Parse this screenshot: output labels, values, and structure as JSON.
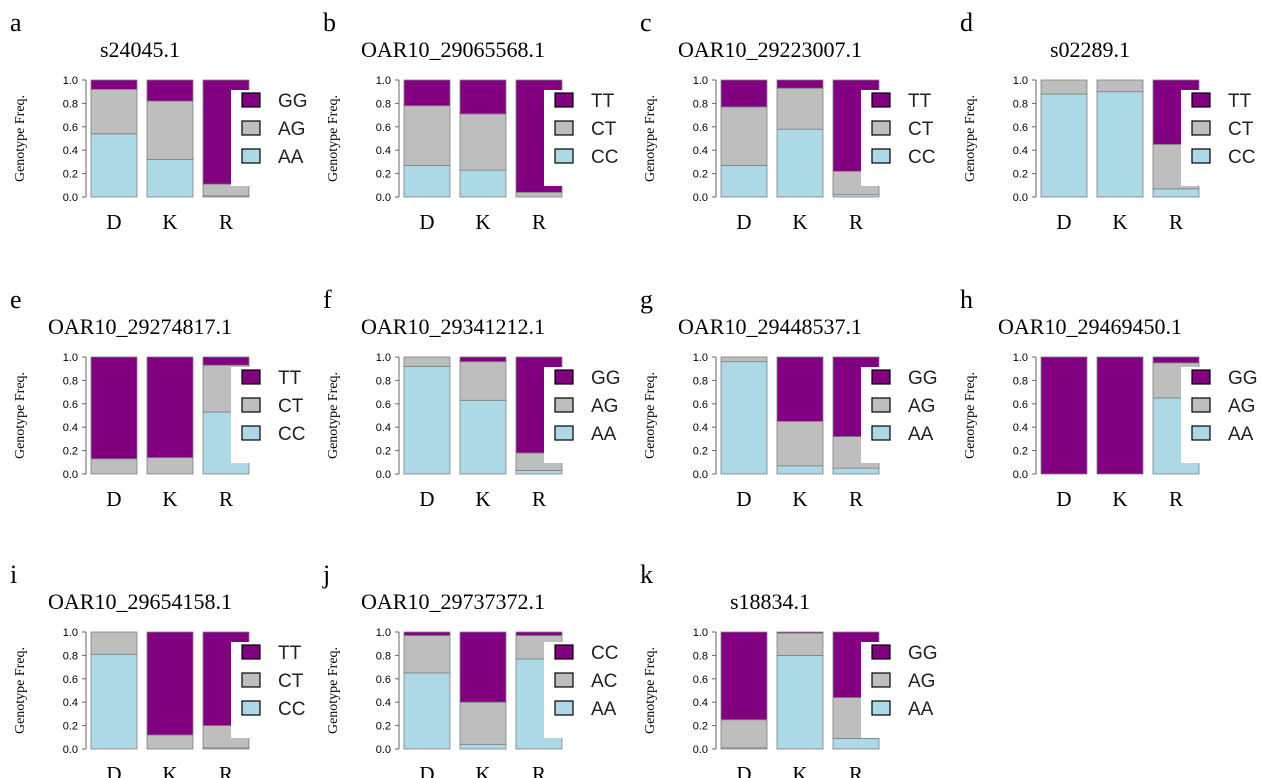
{
  "colors": {
    "hom_alt": "#800080",
    "het": "#bebebe",
    "hom_ref": "#add8e6"
  },
  "chart_data": [
    {
      "letter": "a",
      "title": "s24045.1",
      "type": "bar",
      "stacked": true,
      "ylabel": "Genotype Freq.",
      "ylim": [
        0,
        1
      ],
      "yticks": [
        "0.0",
        "0.2",
        "0.4",
        "0.6",
        "0.8",
        "1.0"
      ],
      "categories": [
        "D",
        "K",
        "R"
      ],
      "series": [
        {
          "name": "AA",
          "values": [
            0.54,
            0.32,
            0.01
          ]
        },
        {
          "name": "AG",
          "values": [
            0.38,
            0.5,
            0.1
          ]
        },
        {
          "name": "GG",
          "values": [
            0.08,
            0.18,
            0.89
          ]
        }
      ]
    },
    {
      "letter": "b",
      "title": "OAR10_29065568.1",
      "type": "bar",
      "stacked": true,
      "ylabel": "Genotype Freq.",
      "ylim": [
        0,
        1
      ],
      "yticks": [
        "0.0",
        "0.2",
        "0.4",
        "0.6",
        "0.8",
        "1.0"
      ],
      "categories": [
        "D",
        "K",
        "R"
      ],
      "series": [
        {
          "name": "CC",
          "values": [
            0.27,
            0.23,
            0.0
          ]
        },
        {
          "name": "CT",
          "values": [
            0.51,
            0.48,
            0.04
          ]
        },
        {
          "name": "TT",
          "values": [
            0.22,
            0.29,
            0.96
          ]
        }
      ]
    },
    {
      "letter": "c",
      "title": "OAR10_29223007.1",
      "type": "bar",
      "stacked": true,
      "ylabel": "Genotype Freq.",
      "ylim": [
        0,
        1
      ],
      "yticks": [
        "0.0",
        "0.2",
        "0.4",
        "0.6",
        "0.8",
        "1.0"
      ],
      "categories": [
        "D",
        "K",
        "R"
      ],
      "series": [
        {
          "name": "CC",
          "values": [
            0.27,
            0.58,
            0.02
          ]
        },
        {
          "name": "CT",
          "values": [
            0.5,
            0.35,
            0.2
          ]
        },
        {
          "name": "TT",
          "values": [
            0.23,
            0.07,
            0.78
          ]
        }
      ]
    },
    {
      "letter": "d",
      "title": "s02289.1",
      "type": "bar",
      "stacked": true,
      "ylabel": "Genotype Freq.",
      "ylim": [
        0,
        1
      ],
      "yticks": [
        "0.0",
        "0.2",
        "0.4",
        "0.6",
        "0.8",
        "1.0"
      ],
      "categories": [
        "D",
        "K",
        "R"
      ],
      "series": [
        {
          "name": "CC",
          "values": [
            0.88,
            0.9,
            0.07
          ]
        },
        {
          "name": "CT",
          "values": [
            0.12,
            0.1,
            0.38
          ]
        },
        {
          "name": "TT",
          "values": [
            0.0,
            0.0,
            0.55
          ]
        }
      ]
    },
    {
      "letter": "e",
      "title": "OAR10_29274817.1",
      "type": "bar",
      "stacked": true,
      "ylabel": "Genotype Freq.",
      "ylim": [
        0,
        1
      ],
      "yticks": [
        "0.0",
        "0.2",
        "0.4",
        "0.6",
        "0.8",
        "1.0"
      ],
      "categories": [
        "D",
        "K",
        "R"
      ],
      "series": [
        {
          "name": "CC",
          "values": [
            0.0,
            0.0,
            0.53
          ]
        },
        {
          "name": "CT",
          "values": [
            0.13,
            0.14,
            0.4
          ]
        },
        {
          "name": "TT",
          "values": [
            0.87,
            0.86,
            0.07
          ]
        }
      ]
    },
    {
      "letter": "f",
      "title": "OAR10_29341212.1",
      "type": "bar",
      "stacked": true,
      "ylabel": "Genotype Freq.",
      "ylim": [
        0,
        1
      ],
      "yticks": [
        "0.0",
        "0.2",
        "0.4",
        "0.6",
        "0.8",
        "1.0"
      ],
      "categories": [
        "D",
        "K",
        "R"
      ],
      "series": [
        {
          "name": "AA",
          "values": [
            0.92,
            0.63,
            0.03
          ]
        },
        {
          "name": "AG",
          "values": [
            0.08,
            0.33,
            0.15
          ]
        },
        {
          "name": "GG",
          "values": [
            0.0,
            0.04,
            0.82
          ]
        }
      ]
    },
    {
      "letter": "g",
      "title": "OAR10_29448537.1",
      "type": "bar",
      "stacked": true,
      "ylabel": "Genotype Freq.",
      "ylim": [
        0,
        1
      ],
      "yticks": [
        "0.0",
        "0.2",
        "0.4",
        "0.6",
        "0.8",
        "1.0"
      ],
      "categories": [
        "D",
        "K",
        "R"
      ],
      "series": [
        {
          "name": "AA",
          "values": [
            0.96,
            0.07,
            0.05
          ]
        },
        {
          "name": "AG",
          "values": [
            0.04,
            0.38,
            0.27
          ]
        },
        {
          "name": "GG",
          "values": [
            0.0,
            0.55,
            0.68
          ]
        }
      ]
    },
    {
      "letter": "h",
      "title": "OAR10_29469450.1",
      "type": "bar",
      "stacked": true,
      "ylabel": "Genotype Freq.",
      "ylim": [
        0,
        1
      ],
      "yticks": [
        "0.0",
        "0.2",
        "0.4",
        "0.6",
        "0.8",
        "1.0"
      ],
      "categories": [
        "D",
        "K",
        "R"
      ],
      "series": [
        {
          "name": "AA",
          "values": [
            0.0,
            0.0,
            0.65
          ]
        },
        {
          "name": "AG",
          "values": [
            0.0,
            0.0,
            0.3
          ]
        },
        {
          "name": "GG",
          "values": [
            1.0,
            1.0,
            0.05
          ]
        }
      ]
    },
    {
      "letter": "i",
      "title": "OAR10_29654158.1",
      "type": "bar",
      "stacked": true,
      "ylabel": "Genotype Freq.",
      "ylim": [
        0,
        1
      ],
      "yticks": [
        "0.0",
        "0.2",
        "0.4",
        "0.6",
        "0.8",
        "1.0"
      ],
      "categories": [
        "D",
        "K",
        "R"
      ],
      "series": [
        {
          "name": "CC",
          "values": [
            0.81,
            0.0,
            0.01
          ]
        },
        {
          "name": "CT",
          "values": [
            0.19,
            0.12,
            0.19
          ]
        },
        {
          "name": "TT",
          "values": [
            0.0,
            0.88,
            0.8
          ]
        }
      ]
    },
    {
      "letter": "j",
      "title": "OAR10_29737372.1",
      "type": "bar",
      "stacked": true,
      "ylabel": "Genotype Freq.",
      "ylim": [
        0,
        1
      ],
      "yticks": [
        "0.0",
        "0.2",
        "0.4",
        "0.6",
        "0.8",
        "1.0"
      ],
      "categories": [
        "D",
        "K",
        "R"
      ],
      "series": [
        {
          "name": "AA",
          "values": [
            0.65,
            0.04,
            0.77
          ]
        },
        {
          "name": "AC",
          "values": [
            0.32,
            0.36,
            0.2
          ]
        },
        {
          "name": "CC",
          "values": [
            0.03,
            0.6,
            0.03
          ]
        }
      ]
    },
    {
      "letter": "k",
      "title": "s18834.1",
      "type": "bar",
      "stacked": true,
      "ylabel": "Genotype Freq.",
      "ylim": [
        0,
        1
      ],
      "yticks": [
        "0.0",
        "0.2",
        "0.4",
        "0.6",
        "0.8",
        "1.0"
      ],
      "categories": [
        "D",
        "K",
        "R"
      ],
      "series": [
        {
          "name": "AA",
          "values": [
            0.01,
            0.8,
            0.09
          ]
        },
        {
          "name": "AG",
          "values": [
            0.24,
            0.19,
            0.35
          ]
        },
        {
          "name": "GG",
          "values": [
            0.75,
            0.01,
            0.56
          ]
        }
      ]
    }
  ]
}
